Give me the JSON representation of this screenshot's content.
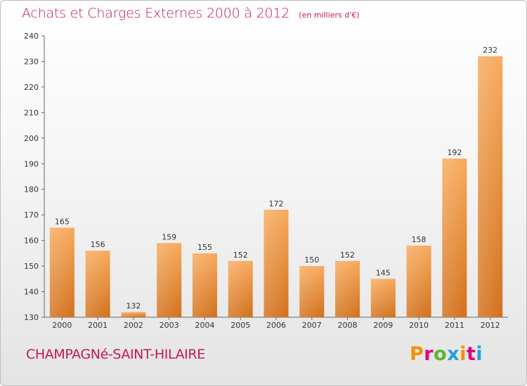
{
  "title": "Achats et Charges Externes 2000 à 2012",
  "unit_label": "(en milliers d'€)",
  "town_name": "CHAMPAGNé-SAINT-HILAIRE",
  "logo_text": "Proxiti",
  "logo_colors": [
    "#f39200",
    "#e2007a",
    "#5bb530",
    "#1fa0dc",
    "#f39200",
    "#e2007a",
    "#1fa0dc"
  ],
  "colors": {
    "title": "#c2185b",
    "bar_light": "#f5a555",
    "bar_dark": "#d77119",
    "axis": "#555555"
  },
  "chart_data": {
    "type": "bar",
    "categories": [
      "2000",
      "2001",
      "2002",
      "2003",
      "2004",
      "2005",
      "2006",
      "2007",
      "2008",
      "2009",
      "2010",
      "2011",
      "2012"
    ],
    "values": [
      165,
      156,
      132,
      159,
      155,
      152,
      172,
      150,
      152,
      145,
      158,
      192,
      232
    ],
    "ylim": [
      130,
      240
    ],
    "yticks": [
      130,
      140,
      150,
      160,
      170,
      180,
      190,
      200,
      210,
      220,
      230,
      240
    ],
    "grid": false,
    "data_labels": true
  }
}
